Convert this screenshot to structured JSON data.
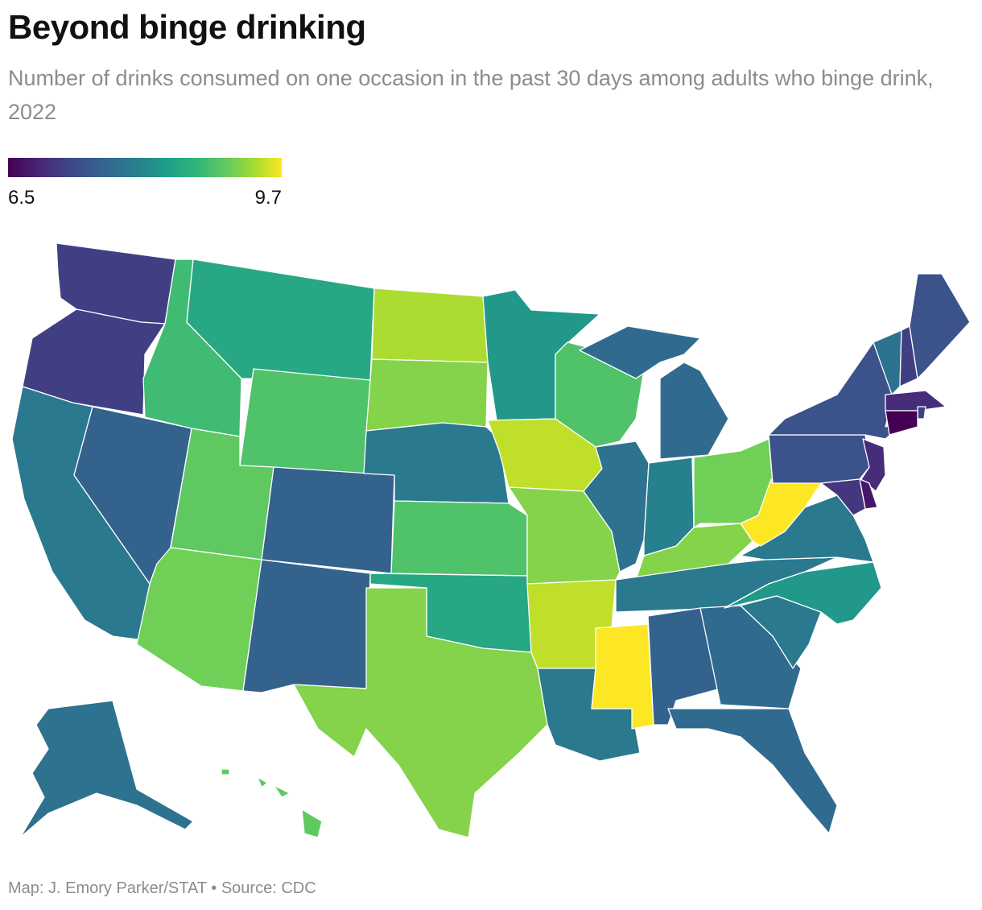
{
  "title": "Beyond binge drinking",
  "subtitle": "Number of drinks consumed on one occasion in the past 30 days among adults who binge drink, 2022",
  "legend": {
    "min_label": "6.5",
    "max_label": "9.7",
    "min": 6.5,
    "max": 9.7
  },
  "footer": "Map: J. Emory Parker/STAT • Source: CDC",
  "colors": {
    "scale": [
      "#440154",
      "#482878",
      "#3e4a89",
      "#31688e",
      "#26828e",
      "#1f9e89",
      "#35b779",
      "#6ece58",
      "#b5de2b",
      "#fde725"
    ]
  },
  "chart_data": {
    "type": "choropleth",
    "title": "Beyond binge drinking",
    "subtitle": "Number of drinks consumed on one occasion in the past 30 days among adults who binge drink, 2022",
    "scale_range": [
      6.5,
      9.7
    ],
    "states": [
      {
        "state": "WA",
        "value": 7.1
      },
      {
        "state": "OR",
        "value": 7.1
      },
      {
        "state": "CA",
        "value": 7.8
      },
      {
        "state": "NV",
        "value": 7.5
      },
      {
        "state": "ID",
        "value": 8.7
      },
      {
        "state": "MT",
        "value": 8.4
      },
      {
        "state": "WY",
        "value": 8.8
      },
      {
        "state": "UT",
        "value": 8.9
      },
      {
        "state": "AZ",
        "value": 9.0
      },
      {
        "state": "CO",
        "value": 7.5
      },
      {
        "state": "NM",
        "value": 7.5
      },
      {
        "state": "ND",
        "value": 9.3
      },
      {
        "state": "SD",
        "value": 9.1
      },
      {
        "state": "NE",
        "value": 7.8
      },
      {
        "state": "KS",
        "value": 8.8
      },
      {
        "state": "OK",
        "value": 8.4
      },
      {
        "state": "TX",
        "value": 9.1
      },
      {
        "state": "MN",
        "value": 8.2
      },
      {
        "state": "IA",
        "value": 9.4
      },
      {
        "state": "MO",
        "value": 9.1
      },
      {
        "state": "AR",
        "value": 9.4
      },
      {
        "state": "LA",
        "value": 7.8
      },
      {
        "state": "WI",
        "value": 8.8
      },
      {
        "state": "IL",
        "value": 7.7
      },
      {
        "state": "MI",
        "value": 7.6
      },
      {
        "state": "IN",
        "value": 7.9
      },
      {
        "state": "OH",
        "value": 9.0
      },
      {
        "state": "KY",
        "value": 9.1
      },
      {
        "state": "TN",
        "value": 7.8
      },
      {
        "state": "MS",
        "value": 9.7
      },
      {
        "state": "AL",
        "value": 7.5
      },
      {
        "state": "GA",
        "value": 7.6
      },
      {
        "state": "FL",
        "value": 7.6
      },
      {
        "state": "SC",
        "value": 7.8
      },
      {
        "state": "NC",
        "value": 8.2
      },
      {
        "state": "VA",
        "value": 7.8
      },
      {
        "state": "WV",
        "value": 9.7
      },
      {
        "state": "PA",
        "value": 7.3
      },
      {
        "state": "NY",
        "value": 7.3
      },
      {
        "state": "VT",
        "value": 7.7
      },
      {
        "state": "NH",
        "value": 7.1
      },
      {
        "state": "ME",
        "value": 7.3
      },
      {
        "state": "MA",
        "value": 6.9
      },
      {
        "state": "RI",
        "value": 7.1
      },
      {
        "state": "CT",
        "value": 6.5
      },
      {
        "state": "NJ",
        "value": 6.9
      },
      {
        "state": "DE",
        "value": 6.7
      },
      {
        "state": "MD",
        "value": 7.0
      },
      {
        "state": "AK",
        "value": 7.7
      },
      {
        "state": "HI",
        "value": 8.9
      }
    ]
  }
}
